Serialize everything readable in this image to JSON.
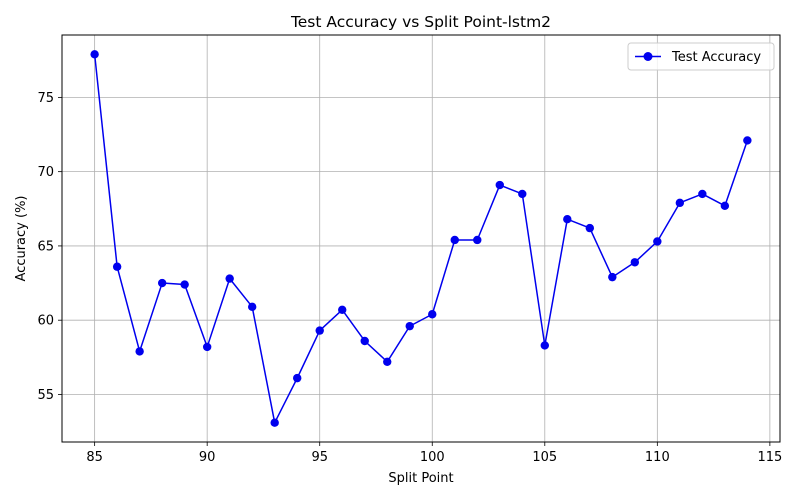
{
  "chart_data": {
    "type": "line",
    "title": "Test Accuracy vs Split Point-lstm2",
    "xlabel": "Split Point",
    "ylabel": "Accuracy (%)",
    "xlim": [
      83.55,
      115.45
    ],
    "ylim": [
      51.8,
      79.2
    ],
    "xticks": [
      85,
      90,
      95,
      100,
      105,
      110,
      115
    ],
    "yticks": [
      55,
      60,
      65,
      70,
      75
    ],
    "grid": true,
    "legend_position": "top-right",
    "series": [
      {
        "name": "Test Accuracy",
        "color": "#0000ee",
        "marker": "circle",
        "x": [
          85,
          86,
          87,
          88,
          89,
          90,
          91,
          92,
          93,
          94,
          95,
          96,
          97,
          98,
          99,
          100,
          101,
          102,
          103,
          104,
          105,
          106,
          107,
          108,
          109,
          110,
          111,
          112,
          113,
          114
        ],
        "y": [
          77.9,
          63.6,
          57.9,
          62.5,
          62.4,
          58.2,
          62.8,
          60.9,
          53.1,
          56.1,
          59.3,
          60.7,
          58.6,
          57.2,
          59.6,
          60.4,
          65.4,
          65.4,
          69.1,
          68.5,
          58.3,
          66.8,
          66.2,
          62.9,
          63.9,
          65.3,
          67.9,
          68.5,
          67.7,
          72.1
        ]
      }
    ]
  }
}
